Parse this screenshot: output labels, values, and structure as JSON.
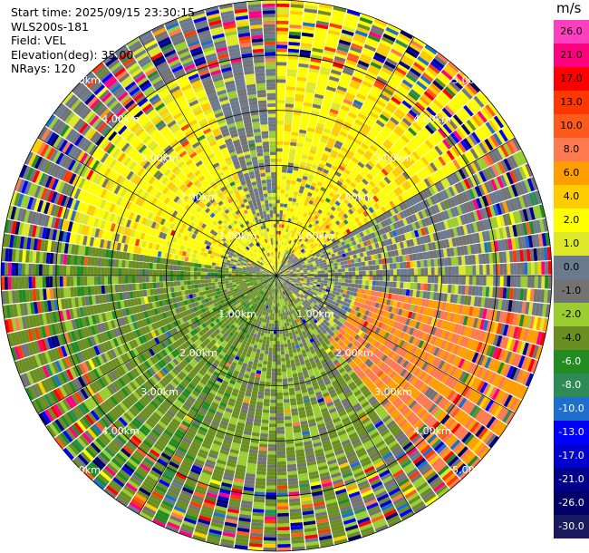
{
  "header": {
    "start_time": "Start time: 2025/09/15 23:30:15",
    "instrument": "WLS200s-181",
    "field": "Field: VEL",
    "elevation": "Elevation(deg): 35.00",
    "nrays": "NRays: 120"
  },
  "colorbar": {
    "title": "m/s",
    "ticks": [
      "26.0",
      "21.0",
      "17.0",
      "13.0",
      "10.0",
      "8.0",
      "6.0",
      "4.0",
      "2.0",
      "1.0",
      "0.0",
      "-1.0",
      "-2.0",
      "-4.0",
      "-6.0",
      "-8.0",
      "-10.0",
      "-13.0",
      "-17.0",
      "-21.0",
      "-26.0",
      "-30.0"
    ],
    "colors": [
      "#ff3fbf",
      "#ff007f",
      "#ff0000",
      "#ff3800",
      "#ff5a1e",
      "#ff7a50",
      "#ff9e00",
      "#ffcc00",
      "#ffff00",
      "#dde82a",
      "#6b7a8f",
      "#737373",
      "#9acd32",
      "#6b8e23",
      "#228b22",
      "#2e8b57",
      "#1e6ecd",
      "#0000ff",
      "#0000cd",
      "#00008b",
      "#000066",
      "#1a1a5e"
    ]
  },
  "chart_data": {
    "type": "ppi",
    "field": "VEL",
    "units": "m/s",
    "n_rays": 120,
    "elevation_deg": 35.0,
    "range_rings_km": [
      1,
      2,
      3,
      4,
      5
    ],
    "ring_labels": [
      "1.00km",
      "2.00km",
      "3.00km",
      "4.00km",
      "5.00km"
    ],
    "max_range_km": 5.0,
    "vmin": -30.0,
    "vmax": 30.0,
    "sectors": [
      {
        "az_from": 0,
        "az_to": 20,
        "inner_km": 0.0,
        "outer_km": 5.0,
        "value": 3.0
      },
      {
        "az_from": 20,
        "az_to": 60,
        "inner_km": 0.5,
        "outer_km": 5.0,
        "value": 3.5
      },
      {
        "az_from": 60,
        "az_to": 100,
        "inner_km": 0.0,
        "outer_km": 2.2,
        "value": 0.0
      },
      {
        "az_from": 100,
        "az_to": 140,
        "inner_km": 1.5,
        "outer_km": 5.0,
        "value": 8.0
      },
      {
        "az_from": 140,
        "az_to": 200,
        "inner_km": 0.0,
        "outer_km": 5.0,
        "value": -2.0
      },
      {
        "az_from": 200,
        "az_to": 280,
        "inner_km": 0.0,
        "outer_km": 5.0,
        "value": -3.0
      },
      {
        "az_from": 280,
        "az_to": 340,
        "inner_km": 1.0,
        "outer_km": 4.0,
        "value": 3.0
      },
      {
        "az_from": 300,
        "az_to": 360,
        "inner_km": 0.0,
        "outer_km": 1.0,
        "value": 2.5
      }
    ]
  }
}
